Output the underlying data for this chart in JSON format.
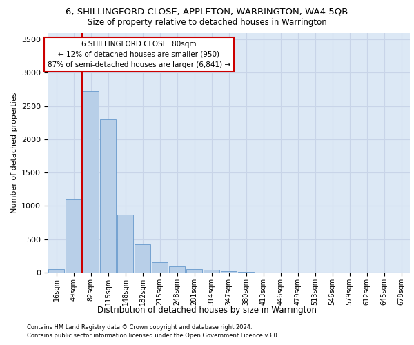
{
  "title": "6, SHILLINGFORD CLOSE, APPLETON, WARRINGTON, WA4 5QB",
  "subtitle": "Size of property relative to detached houses in Warrington",
  "xlabel": "Distribution of detached houses by size in Warrington",
  "ylabel": "Number of detached properties",
  "categories": [
    "16sqm",
    "49sqm",
    "82sqm",
    "115sqm",
    "148sqm",
    "182sqm",
    "215sqm",
    "248sqm",
    "281sqm",
    "314sqm",
    "347sqm",
    "380sqm",
    "413sqm",
    "446sqm",
    "479sqm",
    "513sqm",
    "546sqm",
    "579sqm",
    "612sqm",
    "645sqm",
    "678sqm"
  ],
  "values": [
    50,
    1100,
    2720,
    2300,
    870,
    420,
    160,
    90,
    55,
    40,
    25,
    10,
    5,
    2,
    0,
    0,
    0,
    0,
    0,
    0,
    0
  ],
  "bar_color": "#b8cfe8",
  "bar_edge_color": "#6699cc",
  "annotation_text": "6 SHILLINGFORD CLOSE: 80sqm\n← 12% of detached houses are smaller (950)\n87% of semi-detached houses are larger (6,841) →",
  "annotation_box_color": "#ffffff",
  "annotation_box_edge": "#cc0000",
  "vline_color": "#cc0000",
  "ylim": [
    0,
    3600
  ],
  "yticks": [
    0,
    500,
    1000,
    1500,
    2000,
    2500,
    3000,
    3500
  ],
  "grid_color": "#c8d4e8",
  "bg_color": "#dce8f5",
  "footer1": "Contains HM Land Registry data © Crown copyright and database right 2024.",
  "footer2": "Contains public sector information licensed under the Open Government Licence v3.0."
}
